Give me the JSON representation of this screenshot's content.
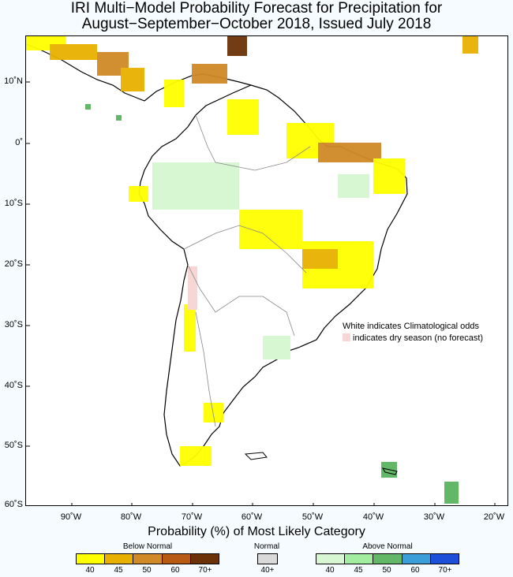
{
  "title": {
    "line1": "IRI Multi−Model Probability Forecast for Precipitation for",
    "line2": "August−September−October 2018, Issued July 2018"
  },
  "lat_labels": [
    "10˚N",
    "0˚",
    "10˚S",
    "20˚S",
    "30˚S",
    "40˚S",
    "50˚S",
    "60˚S"
  ],
  "lon_labels": [
    "90˚W",
    "80˚W",
    "70˚W",
    "60˚W",
    "50˚W",
    "40˚W",
    "30˚W",
    "20˚W"
  ],
  "notice": {
    "line1": "White indicates Climatological odds",
    "line2": "indicates dry season (no forecast)"
  },
  "legend": {
    "title": "Probability (%) of Most Likely Category",
    "below_label": "Below Normal",
    "normal_label": "Normal",
    "above_label": "Above Normal",
    "below_ticks": [
      "40",
      "45",
      "50",
      "60",
      "70+"
    ],
    "normal_ticks": [
      "40+"
    ],
    "above_ticks": [
      "40",
      "45",
      "50",
      "60",
      "70+"
    ],
    "below_colors": [
      "#ffff00",
      "#e8b000",
      "#d08a28",
      "#b85a14",
      "#6b3208"
    ],
    "normal_color": "#d9d9d9",
    "above_colors": [
      "#d7f7d3",
      "#a3eda0",
      "#62b866",
      "#3b9ed8",
      "#1d4fd8"
    ],
    "dry_season_color": "#f9d6d6"
  }
}
